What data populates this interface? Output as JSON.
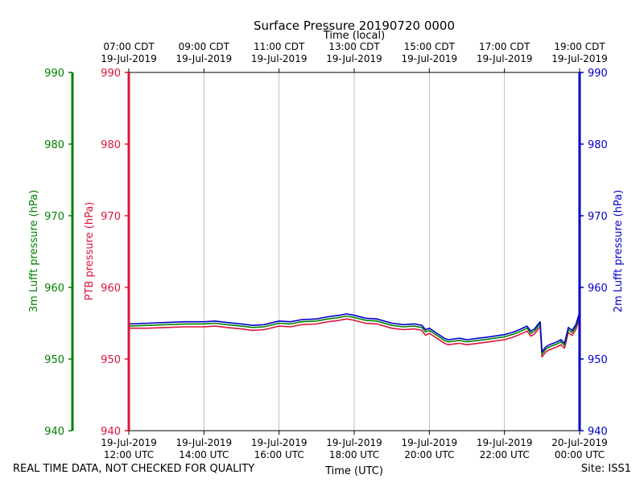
{
  "chart_data": {
    "type": "line",
    "title": "Surface Pressure 20190720 0000",
    "top_axis_label": "Time (local)",
    "xlabel": "Time (UTC)",
    "y_axes": [
      {
        "label": "3m Lufft pressure (hPa)",
        "color": "#008000",
        "side": "outer-left"
      },
      {
        "label": "PTB pressure (hPa)",
        "color": "#dc143c",
        "side": "left"
      },
      {
        "label": "2m Lufft pressure (hPa)",
        "color": "#0000cd",
        "side": "right"
      }
    ],
    "ylim": [
      940,
      990
    ],
    "yticks": [
      940,
      950,
      960,
      970,
      980,
      990
    ],
    "xlim": [
      12,
      24
    ],
    "xticks": [
      12,
      14,
      16,
      18,
      20,
      22,
      24
    ],
    "bottom_tick_labels": [
      [
        "19-Jul-2019",
        "12:00 UTC"
      ],
      [
        "19-Jul-2019",
        "14:00 UTC"
      ],
      [
        "19-Jul-2019",
        "16:00 UTC"
      ],
      [
        "19-Jul-2019",
        "18:00 UTC"
      ],
      [
        "19-Jul-2019",
        "20:00 UTC"
      ],
      [
        "19-Jul-2019",
        "22:00 UTC"
      ],
      [
        "20-Jul-2019",
        "00:00 UTC"
      ]
    ],
    "top_tick_labels": [
      [
        "07:00 CDT",
        "19-Jul-2019"
      ],
      [
        "09:00 CDT",
        "19-Jul-2019"
      ],
      [
        "11:00 CDT",
        "19-Jul-2019"
      ],
      [
        "13:00 CDT",
        "19-Jul-2019"
      ],
      [
        "15:00 CDT",
        "19-Jul-2019"
      ],
      [
        "17:00 CDT",
        "19-Jul-2019"
      ],
      [
        "19:00 CDT",
        "19-Jul-2019"
      ]
    ],
    "grid": "vertical",
    "x": [
      12.0,
      12.5,
      13.0,
      13.5,
      14.0,
      14.3,
      14.6,
      15.0,
      15.3,
      15.6,
      16.0,
      16.3,
      16.6,
      17.0,
      17.3,
      17.6,
      17.8,
      18.0,
      18.3,
      18.6,
      19.0,
      19.3,
      19.6,
      19.8,
      19.9,
      20.0,
      20.2,
      20.4,
      20.5,
      20.8,
      21.0,
      21.3,
      21.6,
      22.0,
      22.2,
      22.4,
      22.6,
      22.7,
      22.8,
      22.9,
      22.95,
      23.0,
      23.1,
      23.2,
      23.4,
      23.5,
      23.6,
      23.7,
      23.8,
      23.9,
      24.0
    ],
    "series": [
      {
        "name": "PTB",
        "color": "#dc143c",
        "values": [
          954.3,
          954.3,
          954.4,
          954.5,
          954.5,
          954.6,
          954.4,
          954.2,
          954.0,
          954.1,
          954.6,
          954.5,
          954.8,
          954.9,
          955.2,
          955.4,
          955.6,
          955.4,
          955.0,
          954.9,
          954.3,
          954.1,
          954.2,
          954.0,
          953.3,
          953.6,
          952.9,
          952.2,
          952.0,
          952.2,
          952.0,
          952.2,
          952.4,
          952.7,
          953.0,
          953.4,
          953.9,
          953.2,
          953.5,
          954.2,
          954.5,
          950.3,
          951.0,
          951.3,
          951.7,
          952.0,
          951.5,
          953.7,
          953.3,
          954.1,
          955.8
        ]
      },
      {
        "name": "3m Lufft",
        "color": "#008000",
        "values": [
          954.6,
          954.7,
          954.8,
          954.9,
          954.9,
          955.0,
          954.8,
          954.6,
          954.4,
          954.5,
          955.0,
          954.9,
          955.2,
          955.3,
          955.6,
          955.8,
          956.0,
          955.8,
          955.4,
          955.3,
          954.7,
          954.5,
          954.6,
          954.4,
          953.8,
          954.0,
          953.3,
          952.6,
          952.4,
          952.6,
          952.4,
          952.6,
          952.8,
          953.1,
          953.4,
          953.8,
          954.3,
          953.6,
          953.9,
          954.6,
          954.9,
          950.7,
          951.4,
          951.7,
          952.1,
          952.4,
          951.9,
          954.1,
          953.7,
          954.5,
          956.2
        ]
      },
      {
        "name": "2m Lufft",
        "color": "#0000cd",
        "values": [
          954.9,
          955.0,
          955.1,
          955.2,
          955.2,
          955.3,
          955.1,
          954.9,
          954.7,
          954.8,
          955.3,
          955.2,
          955.5,
          955.6,
          955.9,
          956.1,
          956.3,
          956.1,
          955.7,
          955.6,
          955.0,
          954.8,
          954.9,
          954.7,
          954.1,
          954.3,
          953.6,
          952.9,
          952.7,
          952.9,
          952.7,
          952.9,
          953.1,
          953.4,
          953.7,
          954.1,
          954.6,
          953.9,
          954.2,
          954.9,
          955.2,
          951.0,
          951.7,
          952.0,
          952.4,
          952.7,
          952.2,
          954.4,
          954.0,
          954.8,
          956.5
        ]
      }
    ]
  },
  "footer": {
    "disclaimer": "REAL TIME DATA, NOT CHECKED FOR QUALITY",
    "site": "Site: ISS1"
  }
}
